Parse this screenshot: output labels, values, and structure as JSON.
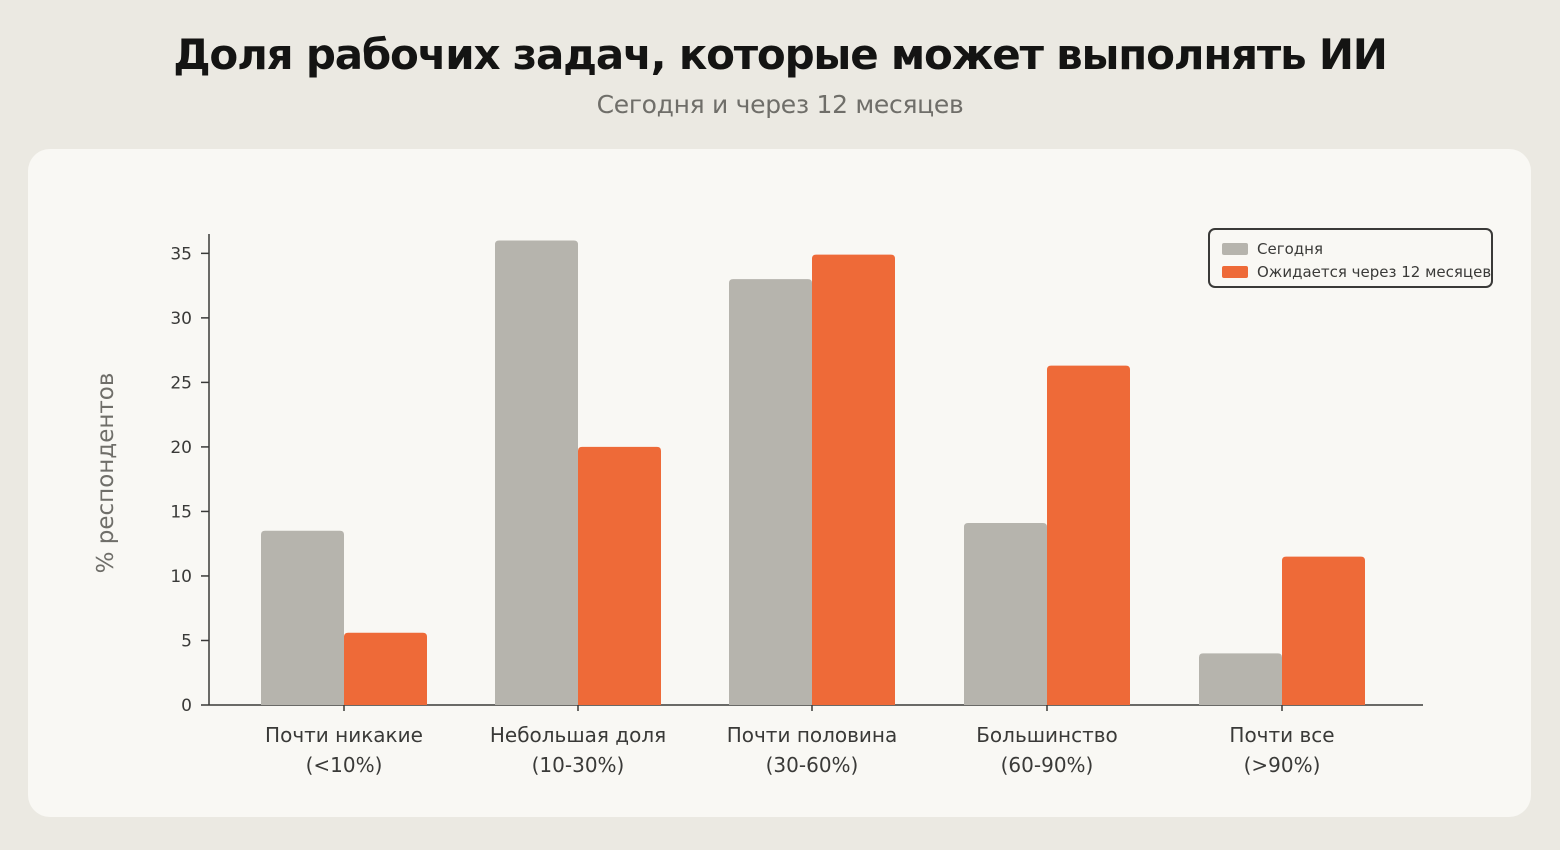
{
  "chart_data": {
    "type": "bar",
    "title": "Доля рабочих задач, которые может выполнять ИИ",
    "subtitle": "Сегодня и через 12 месяцев",
    "ylabel": "% респондентов",
    "xlabel": "",
    "ylim": [
      0,
      36.5
    ],
    "yticks": [
      0,
      5,
      10,
      15,
      20,
      25,
      30,
      35
    ],
    "grid": false,
    "legend_position": "top-right",
    "categories": [
      [
        "Почти никакие",
        "(<10%)"
      ],
      [
        "Небольшая доля",
        "(10-30%)"
      ],
      [
        "Почти половина",
        "(30-60%)"
      ],
      [
        "Большинство",
        "(60-90%)"
      ],
      [
        "Почти все",
        "(>90%)"
      ]
    ],
    "series": [
      {
        "name": "Сегодня",
        "color": "#b6b4ad",
        "values": [
          13.5,
          36.0,
          33.0,
          14.1,
          4.0
        ]
      },
      {
        "name": "Ожидается через 12 месяцев",
        "color": "#ee6a38",
        "values": [
          5.6,
          20.0,
          34.9,
          26.3,
          11.5
        ]
      }
    ]
  },
  "colors": {
    "background": "#ebe9e2",
    "card": "#f9f8f4",
    "axis": "#3a3a38",
    "text": "#3a3a38",
    "muted": "#6f6e69"
  }
}
